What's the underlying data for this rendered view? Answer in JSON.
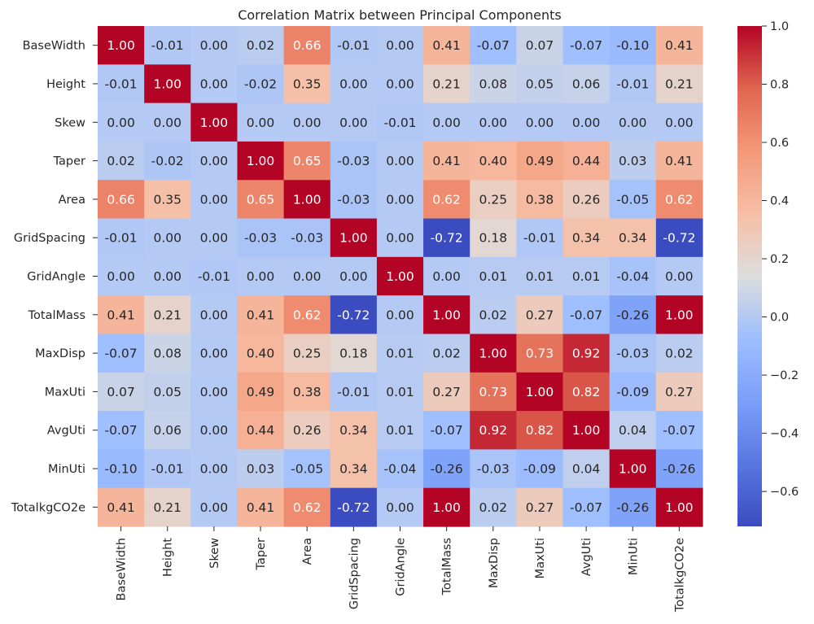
{
  "chart_data": {
    "type": "heatmap",
    "title": "Correlation Matrix between Principal Components",
    "xlabel": "",
    "ylabel": "",
    "rows": [
      "BaseWidth",
      "Height",
      "Skew",
      "Taper",
      "Area",
      "GridSpacing",
      "GridAngle",
      "TotalMass",
      "MaxDisp",
      "MaxUti",
      "AvgUti",
      "MinUti",
      "TotalkgCO2e"
    ],
    "columns": [
      "BaseWidth",
      "Height",
      "Skew",
      "Taper",
      "Area",
      "GridSpacing",
      "GridAngle",
      "TotalMass",
      "MaxDisp",
      "MaxUti",
      "AvgUti",
      "MinUti",
      "TotalkgCO2e"
    ],
    "values": [
      [
        1.0,
        -0.01,
        -0.0,
        0.02,
        0.66,
        -0.01,
        -0.0,
        0.41,
        -0.07,
        0.07,
        -0.07,
        -0.1,
        0.41
      ],
      [
        -0.01,
        1.0,
        -0.0,
        -0.02,
        0.35,
        0.0,
        0.0,
        0.21,
        0.08,
        0.05,
        0.06,
        -0.01,
        0.21
      ],
      [
        -0.0,
        -0.0,
        1.0,
        -0.0,
        -0.0,
        0.0,
        -0.01,
        -0.0,
        0.0,
        -0.0,
        -0.0,
        -0.0,
        -0.0
      ],
      [
        0.02,
        -0.02,
        -0.0,
        1.0,
        0.65,
        -0.03,
        -0.0,
        0.41,
        0.4,
        0.49,
        0.44,
        0.03,
        0.41
      ],
      [
        0.66,
        0.35,
        -0.0,
        0.65,
        1.0,
        -0.03,
        0.0,
        0.62,
        0.25,
        0.38,
        0.26,
        -0.05,
        0.62
      ],
      [
        -0.01,
        0.0,
        0.0,
        -0.03,
        -0.03,
        1.0,
        0.0,
        -0.72,
        0.18,
        -0.01,
        0.34,
        0.34,
        -0.72
      ],
      [
        -0.0,
        0.0,
        -0.01,
        -0.0,
        0.0,
        0.0,
        1.0,
        -0.0,
        0.01,
        0.01,
        0.01,
        -0.04,
        -0.0
      ],
      [
        0.41,
        0.21,
        -0.0,
        0.41,
        0.62,
        -0.72,
        -0.0,
        1.0,
        0.02,
        0.27,
        -0.07,
        -0.26,
        1.0
      ],
      [
        -0.07,
        0.08,
        0.0,
        0.4,
        0.25,
        0.18,
        0.01,
        0.02,
        1.0,
        0.73,
        0.92,
        -0.03,
        0.02
      ],
      [
        0.07,
        0.05,
        -0.0,
        0.49,
        0.38,
        -0.01,
        0.01,
        0.27,
        0.73,
        1.0,
        0.82,
        -0.09,
        0.27
      ],
      [
        -0.07,
        0.06,
        -0.0,
        0.44,
        0.26,
        0.34,
        0.01,
        -0.07,
        0.92,
        0.82,
        1.0,
        0.04,
        -0.07
      ],
      [
        -0.1,
        -0.01,
        -0.0,
        0.03,
        -0.05,
        0.34,
        -0.04,
        -0.26,
        -0.03,
        -0.09,
        0.04,
        1.0,
        -0.26
      ],
      [
        0.41,
        0.21,
        -0.0,
        0.41,
        0.62,
        -0.72,
        -0.0,
        1.0,
        0.02,
        0.27,
        -0.07,
        -0.26,
        1.0
      ]
    ],
    "value_format": "2 decimals",
    "colormap": "coolwarm",
    "color_range": [
      -0.72,
      1.0
    ],
    "colorbar_ticks": [
      "1.0",
      "0.8",
      "0.6",
      "0.4",
      "0.2",
      "0.0",
      "−0.2",
      "−0.4",
      "−0.6"
    ],
    "colorbar_tick_values": [
      1.0,
      0.8,
      0.6,
      0.4,
      0.2,
      0.0,
      -0.2,
      -0.4,
      -0.6
    ],
    "grid": false,
    "colors": {
      "low": "#3b4cc0",
      "mid": "#dddddd",
      "high": "#b40426",
      "text_dark": "#262626",
      "text_light": "#ffffff"
    }
  }
}
